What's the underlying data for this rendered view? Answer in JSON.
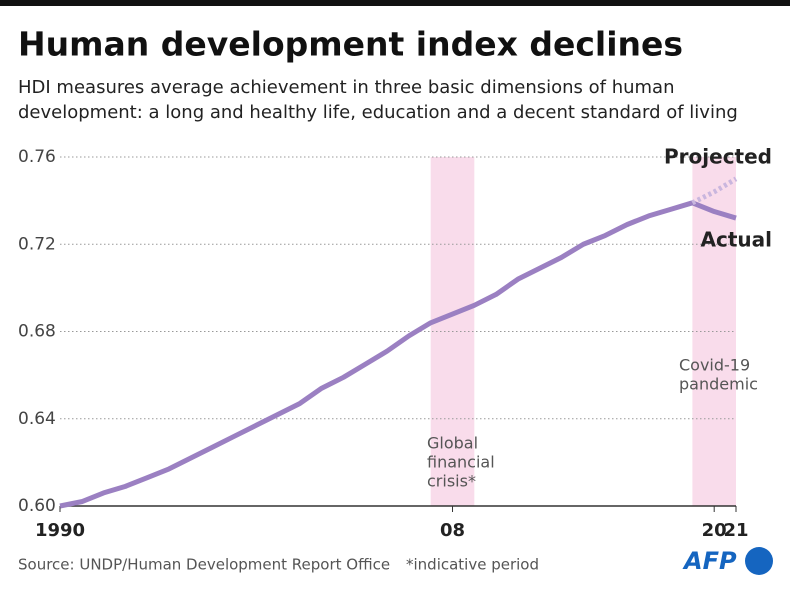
{
  "chart_data": {
    "type": "line",
    "title": "Human development index declines",
    "subtitle": [
      "HDI measures average achievement in three basic dimensions of human",
      "development: a long and healthy life, education and a decent standard of living"
    ],
    "x": [
      1990,
      1991,
      1992,
      1993,
      1994,
      1995,
      1996,
      1997,
      1998,
      1999,
      2000,
      2001,
      2002,
      2003,
      2004,
      2005,
      2006,
      2007,
      2008,
      2009,
      2010,
      2011,
      2012,
      2013,
      2014,
      2015,
      2016,
      2017,
      2018,
      2019,
      2020,
      2021
    ],
    "series": [
      {
        "name": "Actual",
        "color": "#9b80c2",
        "dashed": false,
        "values": [
          0.6,
          0.602,
          0.606,
          0.609,
          0.613,
          0.617,
          0.622,
          0.627,
          0.632,
          0.637,
          0.642,
          0.647,
          0.654,
          0.659,
          0.665,
          0.671,
          0.678,
          0.684,
          0.688,
          0.692,
          0.697,
          0.704,
          0.709,
          0.714,
          0.72,
          0.724,
          0.729,
          0.733,
          0.736,
          0.739,
          0.735,
          0.732
        ]
      },
      {
        "name": "Projected",
        "color": "#c9b6de",
        "dashed": true,
        "values": [
          null,
          null,
          null,
          null,
          null,
          null,
          null,
          null,
          null,
          null,
          null,
          null,
          null,
          null,
          null,
          null,
          null,
          null,
          null,
          null,
          null,
          null,
          null,
          null,
          null,
          null,
          null,
          null,
          null,
          0.739,
          0.744,
          0.75
        ]
      }
    ],
    "xlim": [
      1990,
      2021
    ],
    "xticks": [
      1990,
      {
        "value": 2008,
        "label": "08"
      },
      {
        "value": 2020,
        "label": "20"
      },
      {
        "value": 2021,
        "label": "21"
      }
    ],
    "ylim": [
      0.6,
      0.76
    ],
    "yticks": [
      {
        "value": 0.6,
        "label": "0.60"
      },
      0.64,
      0.68,
      0.72,
      0.76
    ],
    "grid": true,
    "shaded_periods": [
      {
        "start": 2007,
        "end": 2009,
        "label": [
          "Global",
          "financial",
          "crisis*"
        ]
      },
      {
        "start": 2019,
        "end": 2021,
        "label": [
          "Covid-19",
          "pandemic"
        ]
      }
    ],
    "source": "Source: UNDP/Human Development Report Office",
    "note": "*indicative period",
    "logo": "AFP"
  }
}
